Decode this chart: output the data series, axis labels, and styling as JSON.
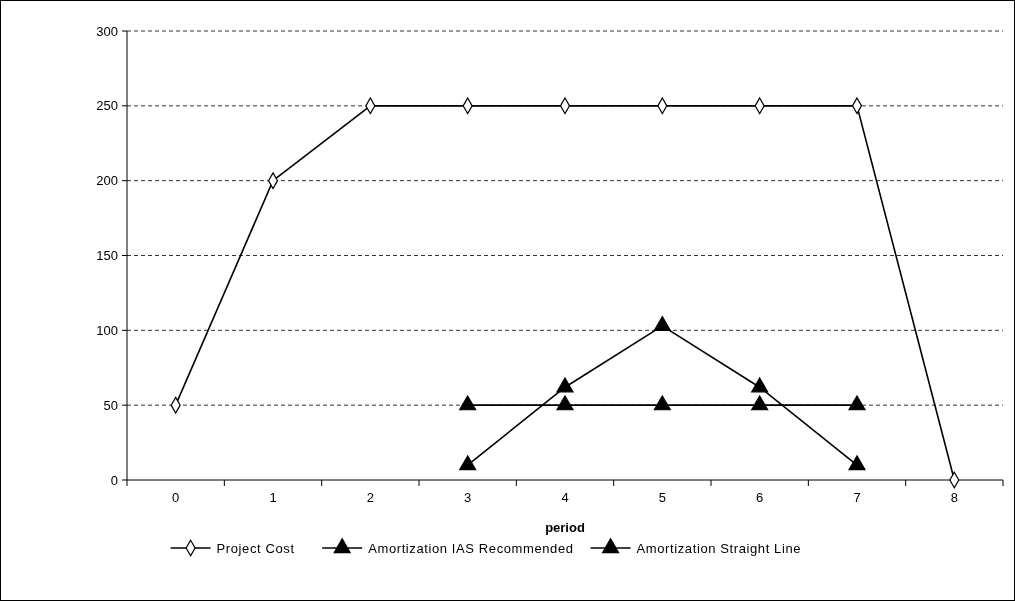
{
  "chart_data": {
    "type": "line",
    "xlabel": "period",
    "categories": [
      "0",
      "1",
      "2",
      "3",
      "4",
      "5",
      "6",
      "7",
      "8"
    ],
    "ylim": [
      0,
      300
    ],
    "yticks": [
      0,
      50,
      100,
      150,
      200,
      250,
      300
    ],
    "grid": "y",
    "legend": "bottom",
    "series": [
      {
        "name": "Project Cost",
        "color": "#000000",
        "marker": "diamond",
        "values": [
          50,
          200,
          250,
          250,
          250,
          250,
          250,
          250,
          0
        ]
      },
      {
        "name": "Amortization IAS Recommended",
        "color": "#000000",
        "marker": "triangle",
        "values": [
          null,
          null,
          null,
          10,
          62,
          103,
          62,
          10,
          null
        ]
      },
      {
        "name": "Amortization Straight Line",
        "color": "#000000",
        "marker": "triangle",
        "values": [
          null,
          null,
          null,
          50,
          50,
          50,
          50,
          50,
          null
        ]
      }
    ]
  }
}
